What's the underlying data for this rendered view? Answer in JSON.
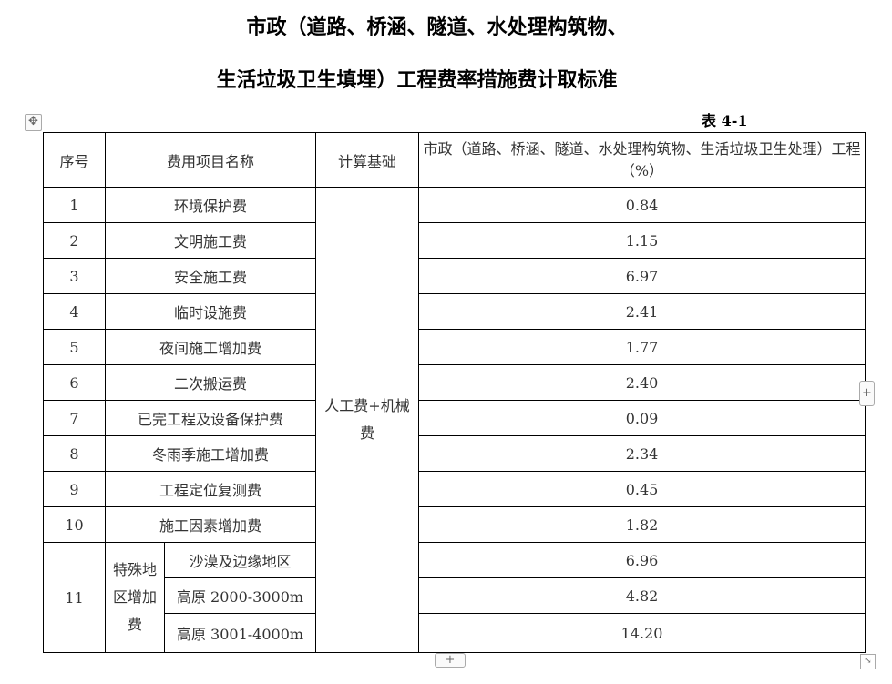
{
  "title_line1": "市政（道路、桥涵、隧道、水处理构筑物、",
  "title_line2": "生活垃圾卫生填埋）工程费率措施费计取标准",
  "table_no": "表 4-1",
  "headers": {
    "no": "序号",
    "name": "费用项目名称",
    "base": "计算基础",
    "rate": "市政（道路、桥涵、隧道、水处理构筑物、生活垃圾卫生处理）工程（%）"
  },
  "calc_base": "人工费+机械费",
  "rows": [
    {
      "no": "1",
      "name": "环境保护费",
      "rate": "0.84"
    },
    {
      "no": "2",
      "name": "文明施工费",
      "rate": "1.15"
    },
    {
      "no": "3",
      "name": "安全施工费",
      "rate": "6.97"
    },
    {
      "no": "4",
      "name": "临时设施费",
      "rate": "2.41"
    },
    {
      "no": "5",
      "name": "夜间施工增加费",
      "rate": "1.77"
    },
    {
      "no": "6",
      "name": "二次搬运费",
      "rate": "2.40"
    },
    {
      "no": "7",
      "name": "已完工程及设备保护费",
      "rate": "0.09"
    },
    {
      "no": "8",
      "name": "冬雨季施工增加费",
      "rate": "2.34"
    },
    {
      "no": "9",
      "name": "工程定位复测费",
      "rate": "0.45"
    },
    {
      "no": "10",
      "name": "施工因素增加费",
      "rate": "1.82"
    }
  ],
  "special": {
    "no": "11",
    "name": "特殊地区增加费",
    "subs": [
      {
        "name": "沙漠及边缘地区",
        "rate": "6.96"
      },
      {
        "name": "高原 2000-3000m",
        "rate": "4.82"
      },
      {
        "name": "高原 3001-4000m",
        "rate": "14.20"
      }
    ]
  },
  "icons": {
    "move": "move-icon",
    "add": "plus-icon",
    "resize": "resize-icon"
  }
}
